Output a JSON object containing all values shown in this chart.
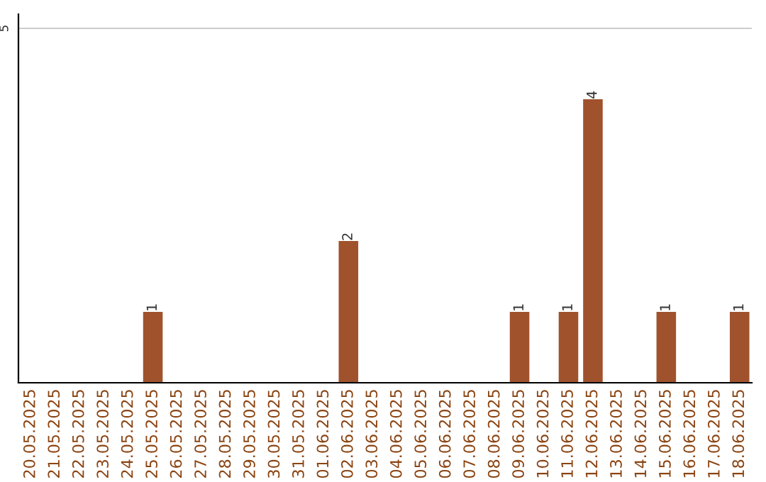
{
  "chart_data": {
    "type": "bar",
    "categories": [
      "20.05.2025",
      "21.05.2025",
      "22.05.2025",
      "23.05.2025",
      "24.05.2025",
      "25.05.2025",
      "26.05.2025",
      "27.05.2025",
      "28.05.2025",
      "29.05.2025",
      "30.05.2025",
      "31.05.2025",
      "01.06.2025",
      "02.06.2025",
      "03.06.2025",
      "04.06.2025",
      "05.06.2025",
      "06.06.2025",
      "07.06.2025",
      "08.06.2025",
      "09.06.2025",
      "10.06.2025",
      "11.06.2025",
      "12.06.2025",
      "13.06.2025",
      "14.06.2025",
      "15.06.2025",
      "16.06.2025",
      "17.06.2025",
      "18.06.2025"
    ],
    "values": [
      0,
      0,
      0,
      0,
      0,
      1,
      0,
      0,
      0,
      0,
      0,
      0,
      0,
      2,
      0,
      0,
      0,
      0,
      0,
      0,
      1,
      0,
      1,
      4,
      0,
      0,
      1,
      0,
      0,
      1
    ],
    "value_labels": [
      null,
      null,
      null,
      null,
      null,
      "1",
      null,
      null,
      null,
      null,
      null,
      null,
      null,
      "2",
      null,
      null,
      null,
      null,
      null,
      null,
      "1",
      null,
      "1",
      "4",
      null,
      null,
      "1",
      null,
      null,
      "1"
    ],
    "color": "#a0522d",
    "ylim": [
      0,
      5.2
    ],
    "yticks": [
      5
    ],
    "grid": "y"
  }
}
